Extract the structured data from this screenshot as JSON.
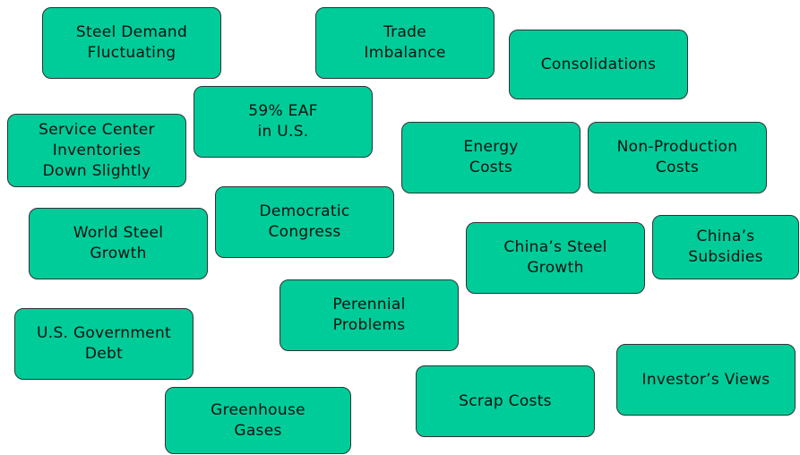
{
  "nodes": [
    {
      "lines": [
        "Steel Demand",
        "Fluctuating"
      ]
    },
    {
      "lines": [
        "Trade",
        "Imbalance"
      ]
    },
    {
      "lines": [
        "Consolidations"
      ]
    },
    {
      "lines": [
        "59% EAF",
        "in U.S."
      ]
    },
    {
      "lines": [
        "Service Center",
        "Inventories",
        "Down Slightly"
      ]
    },
    {
      "lines": [
        "Energy",
        "Costs"
      ]
    },
    {
      "lines": [
        "Non-Production",
        "Costs"
      ]
    },
    {
      "lines": [
        "Democratic",
        "Congress"
      ]
    },
    {
      "lines": [
        "World Steel",
        "Growth"
      ]
    },
    {
      "lines": [
        "China’s Steel",
        "Growth"
      ]
    },
    {
      "lines": [
        "China’s",
        "Subsidies"
      ]
    },
    {
      "lines": [
        "Perennial",
        "Problems"
      ]
    },
    {
      "lines": [
        "U.S. Government",
        "Debt"
      ]
    },
    {
      "lines": [
        "Investor’s Views"
      ]
    },
    {
      "lines": [
        "Scrap Costs"
      ]
    },
    {
      "lines": [
        "Greenhouse",
        "Gases"
      ]
    }
  ]
}
